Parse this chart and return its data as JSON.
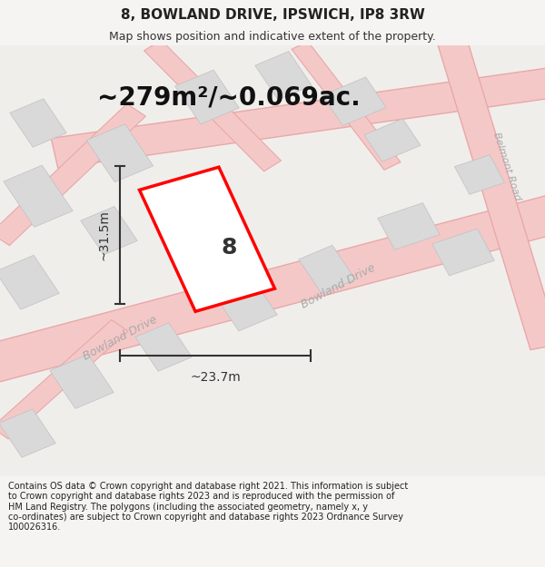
{
  "title": "8, BOWLAND DRIVE, IPSWICH, IP8 3RW",
  "subtitle": "Map shows position and indicative extent of the property.",
  "area_text": "~279m²/~0.069ac.",
  "width_label": "~23.7m",
  "height_label": "~31.5m",
  "number_label": "8",
  "footer": "Contains OS data © Crown copyright and database right 2021. This information is subject to Crown copyright and database rights 2023 and is reproduced with the permission of HM Land Registry. The polygons (including the associated geometry, namely x, y co-ordinates) are subject to Crown copyright and database rights 2023 Ordnance Survey 100026316.",
  "bg_color": "#f5f4f2",
  "map_bg": "#ffffff",
  "road_color_main": "#f5c8c8",
  "road_color_outline": "#e8a8a8",
  "building_color": "#d9d9d9",
  "building_outline": "#c0c0c0",
  "plot_color": "#ffffff",
  "plot_outline": "#ff0000",
  "plot_lw": 2.5,
  "road_label_color": "#b0b0b0",
  "title_fontsize": 11,
  "subtitle_fontsize": 9,
  "area_fontsize": 20,
  "dim_fontsize": 10,
  "num_fontsize": 18,
  "footer_fontsize": 7
}
